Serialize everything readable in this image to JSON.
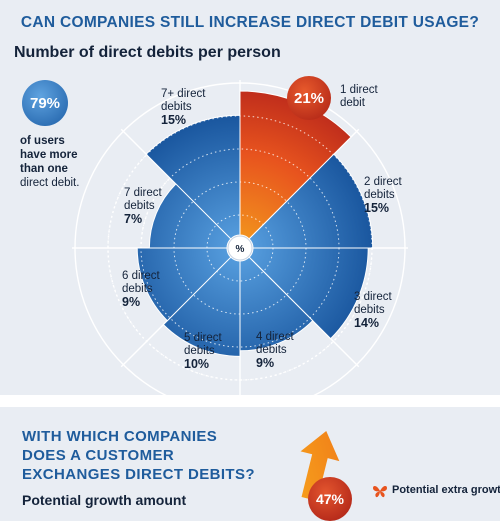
{
  "header": {
    "title": "CAN COMPANIES STILL INCREASE DIRECT DEBIT USAGE?",
    "subtitle": "Number of direct debits per person"
  },
  "stat": {
    "value": "79%",
    "line1_bold": "of users",
    "line2_bold": "have more",
    "line3_bold": "than one",
    "line4": "direct debit."
  },
  "chart_data": {
    "type": "polar-area",
    "center_label": "%",
    "segments": [
      {
        "label_l1": "1 direct",
        "label_l2": "debit",
        "value": 21,
        "pct": "21%",
        "color": "#e64a19"
      },
      {
        "label_l1": "2 direct",
        "label_l2": "debits",
        "value": 15,
        "pct": "15%",
        "color": "#2c78c2"
      },
      {
        "label_l1": "3 direct",
        "label_l2": "debits",
        "value": 14,
        "pct": "14%",
        "color": "#2c78c2"
      },
      {
        "label_l1": "4 direct",
        "label_l2": "debits",
        "value": 9,
        "pct": "9%",
        "color": "#2c78c2"
      },
      {
        "label_l1": "5 direct",
        "label_l2": "debits",
        "value": 10,
        "pct": "10%",
        "color": "#2c78c2"
      },
      {
        "label_l1": "6 direct",
        "label_l2": "debits",
        "value": 9,
        "pct": "9%",
        "color": "#2c78c2"
      },
      {
        "label_l1": "7 direct",
        "label_l2": "debits",
        "value": 7,
        "pct": "7%",
        "color": "#2c78c2"
      },
      {
        "label_l1": "7+ direct",
        "label_l2": "debits",
        "value": 15,
        "pct": "15%",
        "color": "#2c78c2"
      }
    ]
  },
  "section2": {
    "title_l1": "WITH WHICH COMPANIES",
    "title_l2": "DOES A CUSTOMER",
    "title_l3": "EXCHANGES DIRECT DEBITS?",
    "subtitle": "Potential growth amount",
    "badge": "47%",
    "growth_label": "Potential extra growth"
  }
}
